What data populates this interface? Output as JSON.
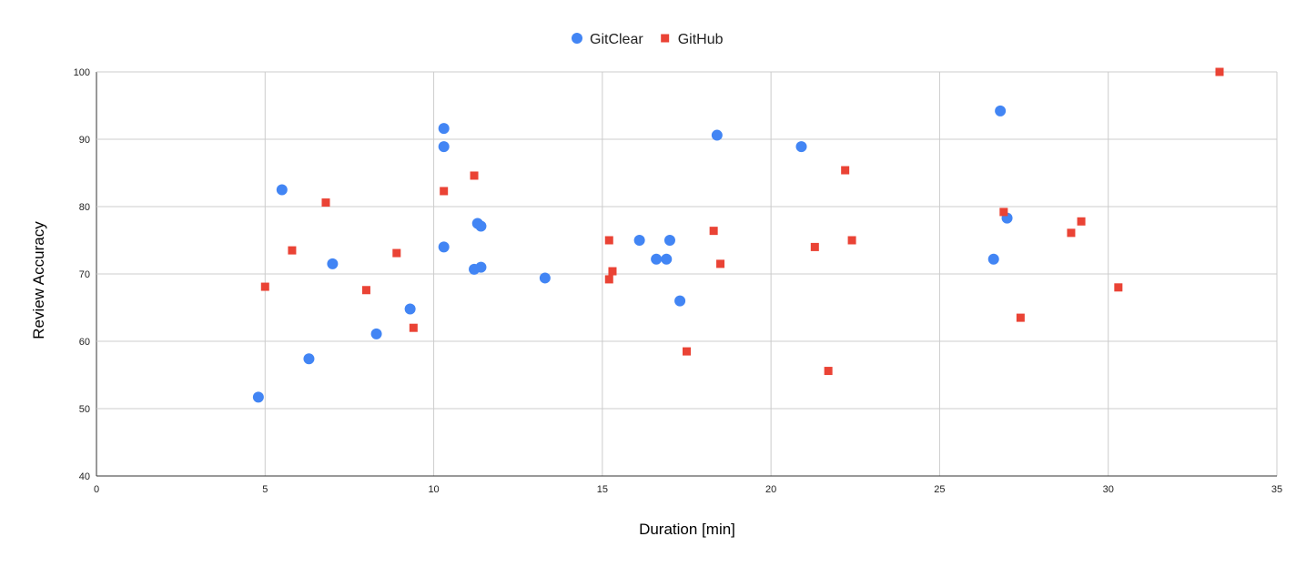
{
  "chart_data": {
    "type": "scatter",
    "title": "",
    "xlabel": "Duration [min]",
    "ylabel": "Review Accuracy",
    "xlim": [
      0,
      35
    ],
    "ylim": [
      40,
      100
    ],
    "x_ticks": [
      0,
      5,
      10,
      15,
      20,
      25,
      30,
      35
    ],
    "y_ticks": [
      40,
      50,
      60,
      70,
      80,
      90,
      100
    ],
    "grid": true,
    "legend_position": "top-center",
    "series": [
      {
        "name": "GitClear",
        "marker": "circle",
        "color": "#4285f4",
        "points": [
          [
            4.8,
            51.7
          ],
          [
            5.5,
            82.5
          ],
          [
            6.3,
            57.4
          ],
          [
            7.0,
            71.5
          ],
          [
            8.3,
            61.1
          ],
          [
            9.3,
            64.8
          ],
          [
            10.3,
            74.0
          ],
          [
            10.3,
            88.9
          ],
          [
            10.3,
            91.6
          ],
          [
            11.2,
            70.7
          ],
          [
            11.3,
            77.5
          ],
          [
            11.4,
            71.0
          ],
          [
            11.4,
            77.1
          ],
          [
            13.3,
            69.4
          ],
          [
            16.1,
            75.0
          ],
          [
            16.6,
            72.2
          ],
          [
            16.9,
            72.2
          ],
          [
            17.0,
            75.0
          ],
          [
            17.3,
            66.0
          ],
          [
            18.4,
            90.6
          ],
          [
            20.9,
            88.9
          ],
          [
            26.6,
            72.2
          ],
          [
            26.8,
            94.2
          ],
          [
            27.0,
            78.3
          ]
        ]
      },
      {
        "name": "GitHub",
        "marker": "square",
        "color": "#ea4335",
        "points": [
          [
            5.0,
            68.1
          ],
          [
            5.8,
            73.5
          ],
          [
            6.8,
            80.6
          ],
          [
            8.0,
            67.6
          ],
          [
            8.9,
            73.1
          ],
          [
            9.4,
            62.0
          ],
          [
            10.3,
            82.3
          ],
          [
            11.2,
            84.6
          ],
          [
            15.2,
            75.0
          ],
          [
            15.2,
            69.2
          ],
          [
            15.3,
            70.4
          ],
          [
            17.5,
            58.5
          ],
          [
            18.3,
            76.4
          ],
          [
            18.5,
            71.5
          ],
          [
            21.3,
            74.0
          ],
          [
            21.7,
            55.6
          ],
          [
            22.2,
            85.4
          ],
          [
            22.4,
            75.0
          ],
          [
            26.9,
            79.2
          ],
          [
            27.4,
            63.5
          ],
          [
            28.9,
            76.1
          ],
          [
            29.2,
            77.8
          ],
          [
            30.3,
            68.0
          ],
          [
            33.3,
            100.0
          ]
        ]
      }
    ]
  }
}
